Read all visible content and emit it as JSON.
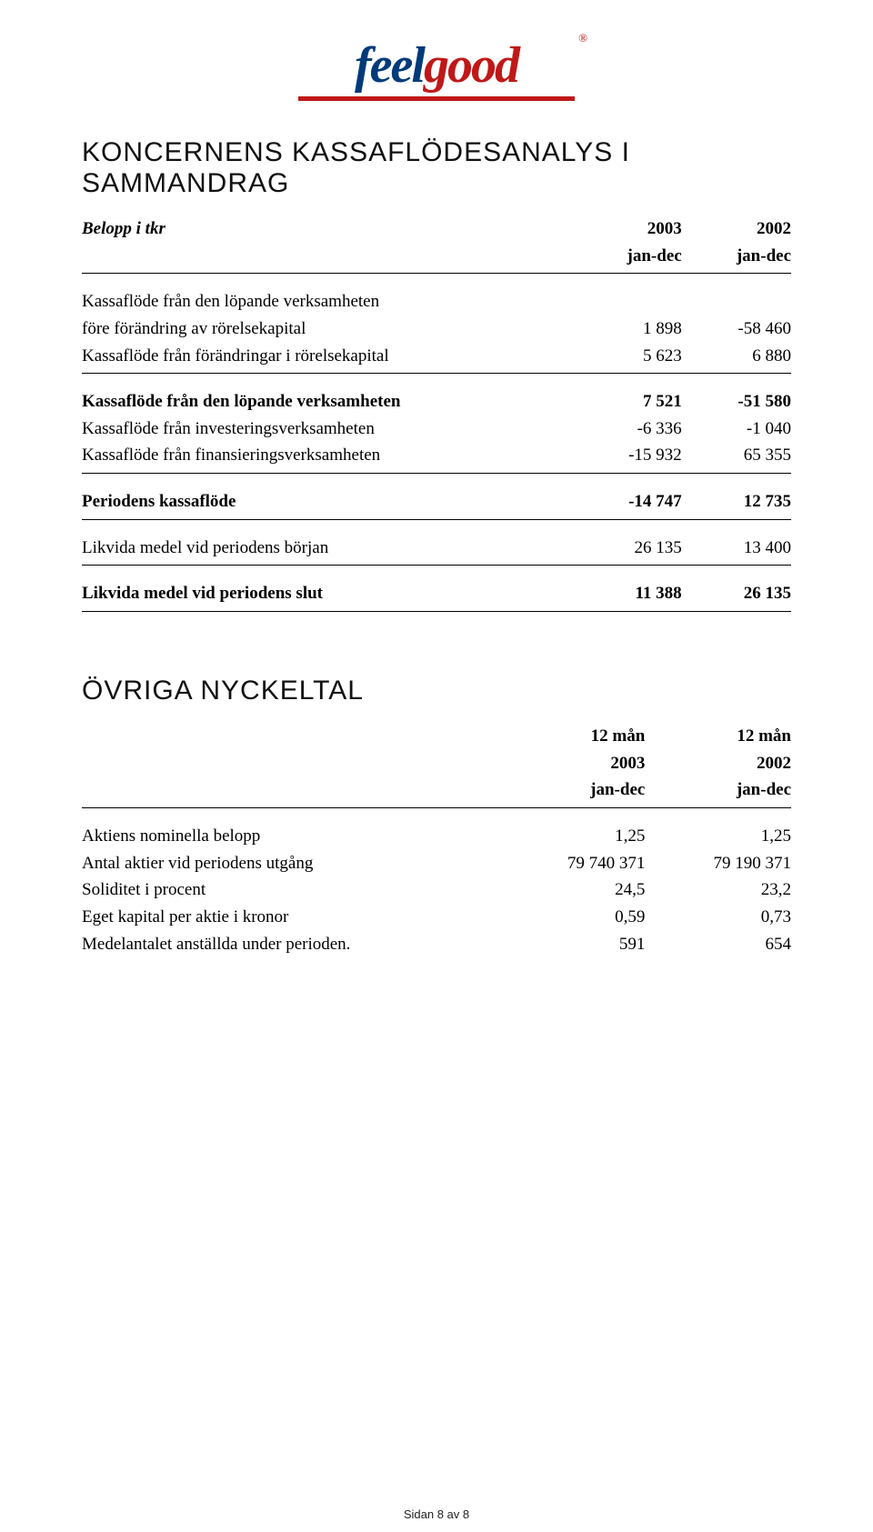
{
  "logo": {
    "feel": "feel",
    "good": "good",
    "reg": "®",
    "feel_color": "#003a7a",
    "good_color": "#c01818",
    "underline_color": "#c01818"
  },
  "section1": {
    "title": "KONCERNENS KASSAFLÖDESANALYS I SAMMANDRAG",
    "header": {
      "label": "Belopp i tkr",
      "col1_top": "2003",
      "col1_bot": "jan-dec",
      "col2_top": "2002",
      "col2_bot": "jan-dec"
    },
    "rows": [
      {
        "label": "Kassaflöde från den löpande verksamheten",
        "v1": "",
        "v2": ""
      },
      {
        "label": "före förändring av rörelsekapital",
        "v1": "1 898",
        "v2": "-58 460"
      },
      {
        "label": "Kassaflöde från förändringar i rörelsekapital",
        "v1": "5 623",
        "v2": "6 880"
      }
    ],
    "rows2": [
      {
        "label": "Kassaflöde från den löpande verksamheten",
        "v1": "7 521",
        "v2": "-51 580",
        "bold": true
      },
      {
        "label": "Kassaflöde från investeringsverksamheten",
        "v1": "-6 336",
        "v2": "-1 040"
      },
      {
        "label": "Kassaflöde från finansieringsverksamheten",
        "v1": "-15 932",
        "v2": "65 355"
      }
    ],
    "rows3": [
      {
        "label": "Periodens kassaflöde",
        "v1": "-14 747",
        "v2": "12 735",
        "bold": true
      }
    ],
    "rows4": [
      {
        "label": "Likvida medel vid periodens början",
        "v1": "26 135",
        "v2": "13 400"
      }
    ],
    "rows5": [
      {
        "label": "Likvida medel vid periodens slut",
        "v1": "11 388",
        "v2": "26 135",
        "bold": true
      }
    ]
  },
  "section2": {
    "title": "ÖVRIGA NYCKELTAL",
    "header": {
      "col1_top": "12 mån",
      "col1_mid": "2003",
      "col1_bot": "jan-dec",
      "col2_top": "12 mån",
      "col2_mid": "2002",
      "col2_bot": "jan-dec"
    },
    "rows": [
      {
        "label": "Aktiens nominella belopp",
        "v1": "1,25",
        "v2": "1,25"
      },
      {
        "label": "Antal aktier vid periodens utgång",
        "v1": "79 740 371",
        "v2": "79 190 371"
      },
      {
        "label": "Soliditet i procent",
        "v1": "24,5",
        "v2": "23,2"
      },
      {
        "label": "Eget kapital per aktie i kronor",
        "v1": "0,59",
        "v2": "0,73"
      },
      {
        "label": "Medelantalet anställda under perioden.",
        "v1": "591",
        "v2": "654"
      }
    ]
  },
  "footer": {
    "text": "Sidan 8 av 8"
  }
}
